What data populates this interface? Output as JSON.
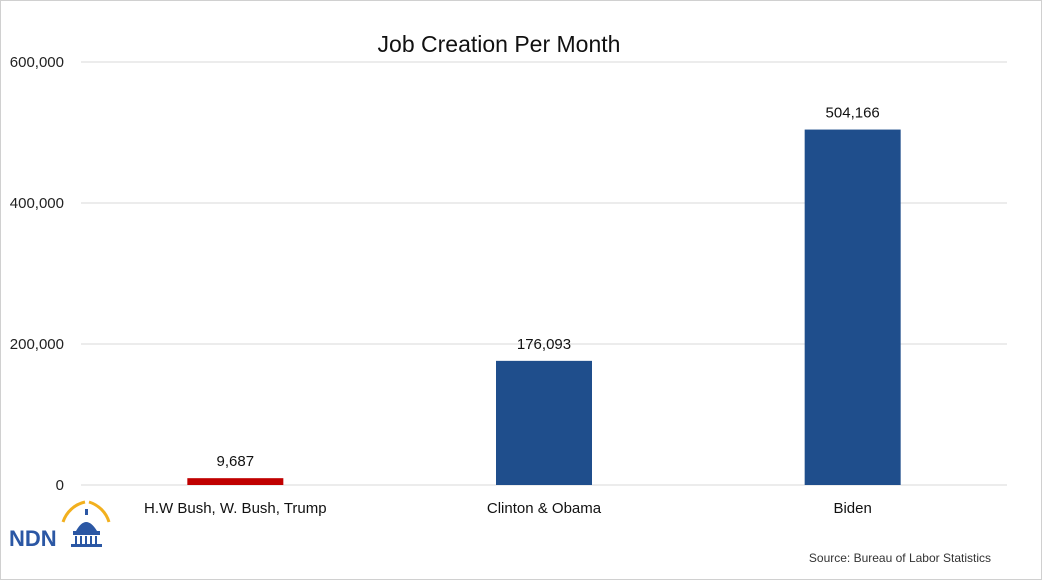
{
  "chart_data": {
    "type": "bar",
    "title": "Job Creation Per Month",
    "categories": [
      "H.W Bush, W. Bush, Trump",
      "Clinton & Obama",
      "Biden"
    ],
    "values": [
      9687,
      176093,
      504166
    ],
    "data_labels": [
      "9,687",
      "176,093",
      "504,166"
    ],
    "colors": [
      "#c00000",
      "#1f4e8c",
      "#1f4e8c"
    ],
    "ylim": [
      0,
      600000
    ],
    "yticks": [
      0,
      200000,
      400000,
      600000
    ],
    "ytick_labels": [
      "0",
      "200,000",
      "400,000",
      "600,000"
    ],
    "xlabel": "",
    "ylabel": "",
    "grid": true,
    "legend": "none"
  },
  "source": "Source: Bureau of Labor Statistics",
  "logo": {
    "text": "NDN",
    "icon": "capitol-dome-icon",
    "accent_color": "#f2b01e",
    "brand_color": "#2b57a4"
  }
}
